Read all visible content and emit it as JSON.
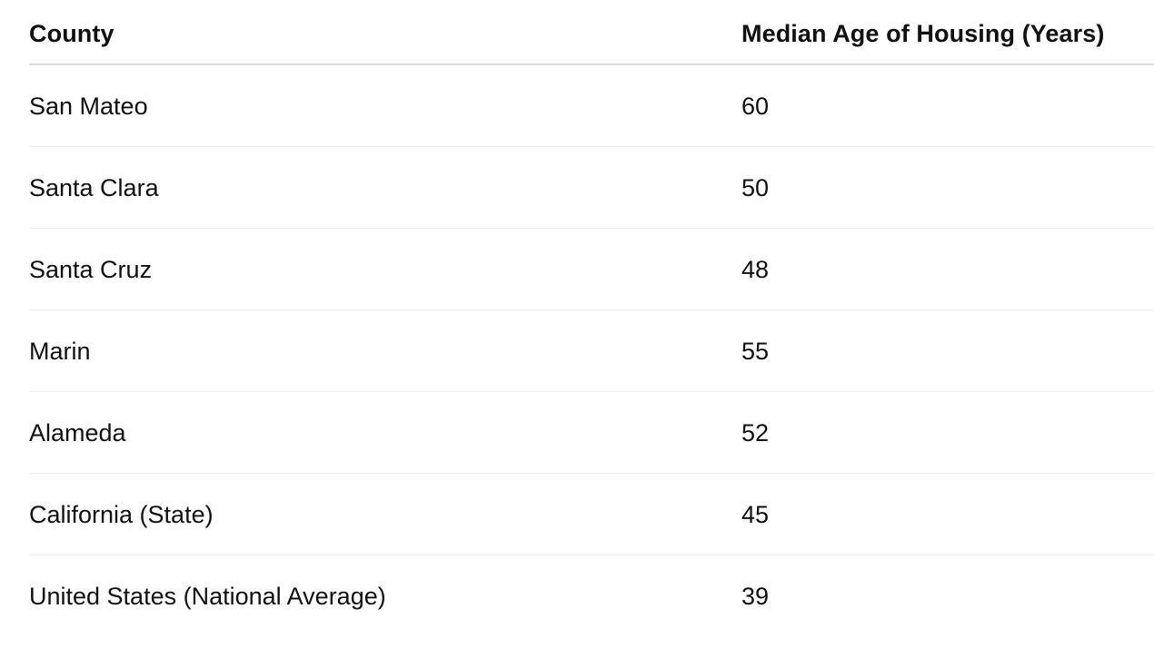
{
  "table": {
    "headers": {
      "county": "County",
      "median_age": "Median Age of Housing (Years)"
    },
    "rows": [
      {
        "county": "San Mateo",
        "median_age": "60"
      },
      {
        "county": "Santa Clara",
        "median_age": "50"
      },
      {
        "county": "Santa Cruz",
        "median_age": "48"
      },
      {
        "county": "Marin",
        "median_age": "55"
      },
      {
        "county": "Alameda",
        "median_age": "52"
      },
      {
        "county": "California (State)",
        "median_age": "45"
      },
      {
        "county": "United States (National Average)",
        "median_age": "39"
      }
    ]
  }
}
